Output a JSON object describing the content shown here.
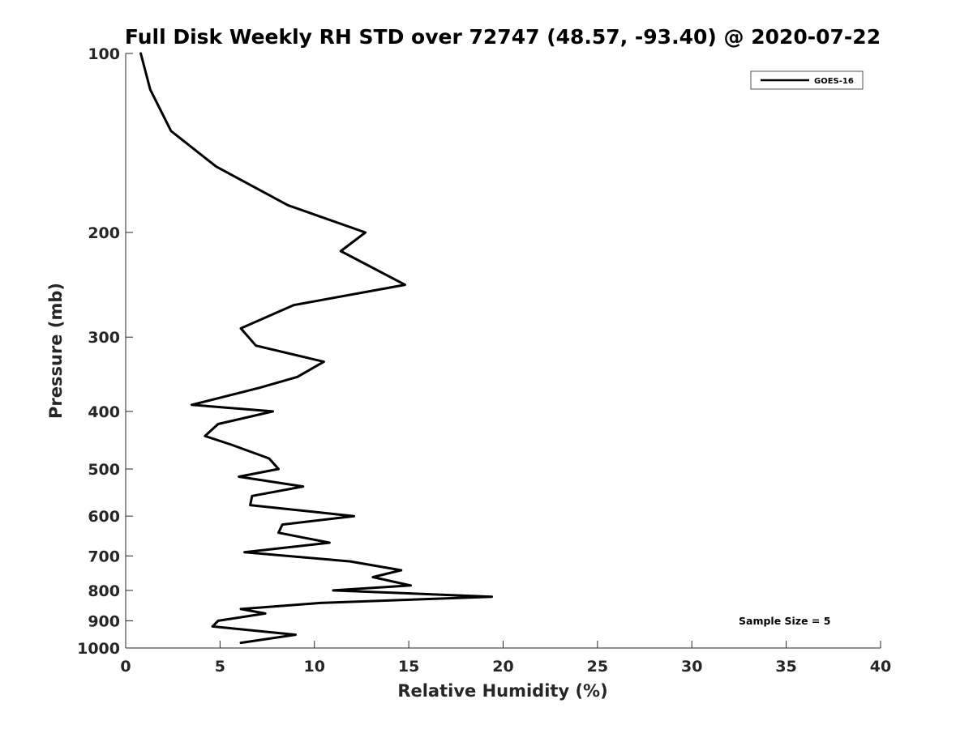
{
  "chart_data": {
    "type": "line",
    "title": "Full Disk Weekly RH STD over 72747 (48.57, -93.40) @ 2020-07-22",
    "xlabel": "Relative Humidity (%)",
    "ylabel": "Pressure (mb)",
    "xlim": [
      0,
      40
    ],
    "ylim": [
      100,
      1000
    ],
    "y_scale": "log",
    "y_reversed": true,
    "x_ticks": [
      0,
      5,
      10,
      15,
      20,
      25,
      30,
      35,
      40
    ],
    "y_ticks": [
      100,
      200,
      300,
      400,
      500,
      600,
      700,
      800,
      900,
      1000
    ],
    "grid": false,
    "legend_position": "top-right",
    "annotation": "Sample Size = 5",
    "series": [
      {
        "name": "GOES-16",
        "color": "#000000",
        "x": [
          0.8,
          1.3,
          2.4,
          4.8,
          8.6,
          12.7,
          11.4,
          14.8,
          8.9,
          6.1,
          6.9,
          10.5,
          9.1,
          7.1,
          3.5,
          7.8,
          4.9,
          4.2,
          5.6,
          7.6,
          8.1,
          6.0,
          9.4,
          6.7,
          6.6,
          12.1,
          8.3,
          8.1,
          10.8,
          6.3,
          11.9,
          14.6,
          13.1,
          15.1,
          11.0,
          19.4,
          10.3,
          6.1,
          7.4,
          4.9,
          4.6,
          9.0,
          6.1
        ],
        "y": [
          100,
          115,
          135,
          155,
          180,
          200,
          215,
          245,
          265,
          290,
          310,
          330,
          350,
          365,
          390,
          400,
          420,
          440,
          455,
          480,
          500,
          515,
          535,
          555,
          575,
          600,
          620,
          640,
          665,
          690,
          715,
          740,
          760,
          785,
          800,
          820,
          840,
          860,
          875,
          900,
          920,
          950,
          980
        ]
      }
    ]
  }
}
